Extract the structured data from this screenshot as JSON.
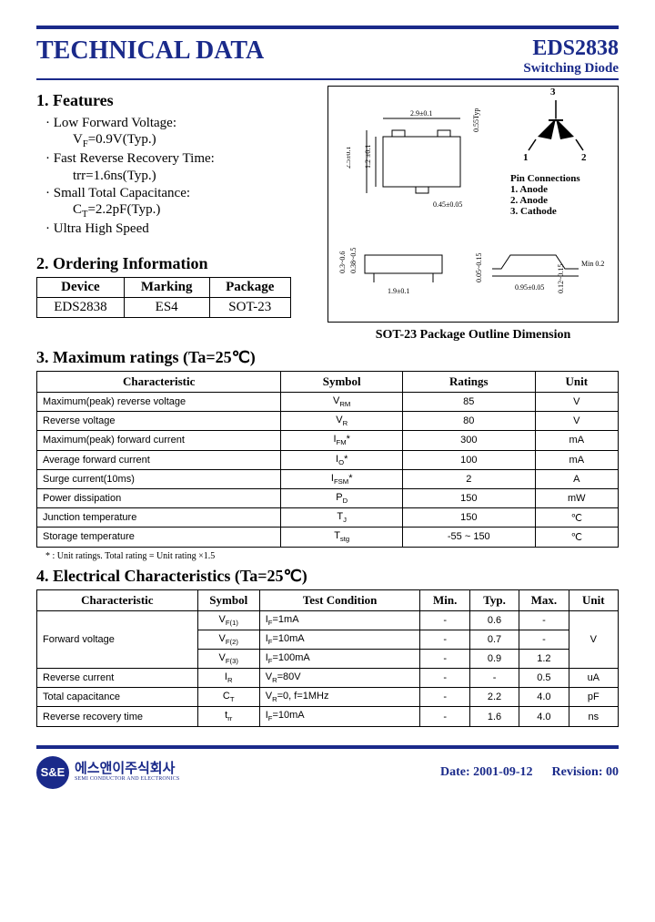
{
  "header": {
    "title": "TECHNICAL DATA",
    "part_number": "EDS2838",
    "part_type": "Switching Diode",
    "accent_color": "#1a2a8a"
  },
  "features": {
    "heading": "1. Features",
    "items": [
      {
        "main": "· Low Forward Voltage:",
        "sub": "VF=0.9V(Typ.)"
      },
      {
        "main": "· Fast Reverse Recovery Time:",
        "sub": "trr=1.6ns(Typ.)"
      },
      {
        "main": "· Small Total Capacitance:",
        "sub": "CT=2.2pF(Typ.)"
      },
      {
        "main": "· Ultra High Speed",
        "sub": ""
      }
    ]
  },
  "ordering": {
    "heading": "2. Ordering Information",
    "columns": [
      "Device",
      "Marking",
      "Package"
    ],
    "rows": [
      [
        "EDS2838",
        "ES4",
        "SOT-23"
      ]
    ]
  },
  "package_diagram": {
    "caption": "SOT-23 Package Outline Dimension",
    "pin_heading": "Pin Connections",
    "pins": [
      "1. Anode",
      "2. Anode",
      "3. Cathode"
    ],
    "pin_top": "3",
    "pin_bl": "1",
    "pin_br": "2",
    "dims": [
      "2.9±0.1",
      "0.55Typ",
      "1.2 ±0.1",
      "2.5±0.1",
      "0.45±0.05",
      "1.9±0.1",
      "0.95±0.05",
      "0.3~0.6",
      "0.38~0.5",
      "0.05~0.15",
      "0.12~0.15",
      "Min 0.2"
    ]
  },
  "max_ratings": {
    "heading": "3. Maximum ratings (Ta=25℃)",
    "columns": [
      "Characteristic",
      "Symbol",
      "Ratings",
      "Unit"
    ],
    "rows": [
      [
        "Maximum(peak) reverse voltage",
        "VRM",
        "85",
        "V"
      ],
      [
        "Reverse voltage",
        "VR",
        "80",
        "V"
      ],
      [
        "Maximum(peak) forward current",
        "IFM*",
        "300",
        "mA"
      ],
      [
        "Average forward current",
        "IO*",
        "100",
        "mA"
      ],
      [
        "Surge current(10ms)",
        "IFSM*",
        "2",
        "A"
      ],
      [
        "Power dissipation",
        "PD",
        "150",
        "mW"
      ],
      [
        "Junction temperature",
        "TJ",
        "150",
        "℃"
      ],
      [
        "Storage temperature",
        "Tstg",
        "-55 ~ 150",
        "℃"
      ]
    ],
    "footnote": "* : Unit ratings. Total rating = Unit rating ×1.5"
  },
  "elec": {
    "heading": "4. Electrical Characteristics (Ta=25℃)",
    "columns": [
      "Characteristic",
      "Symbol",
      "Test Condition",
      "Min.",
      "Typ.",
      "Max.",
      "Unit"
    ],
    "rows": [
      {
        "char": "Forward voltage",
        "rowspan": 3,
        "sym": "VF(1)",
        "cond": "IF=1mA",
        "min": "-",
        "typ": "0.6",
        "max": "-",
        "unit": "V",
        "unitrowspan": 3
      },
      {
        "sym": "VF(2)",
        "cond": "IF=10mA",
        "min": "-",
        "typ": "0.7",
        "max": "-"
      },
      {
        "sym": "VF(3)",
        "cond": "IF=100mA",
        "min": "-",
        "typ": "0.9",
        "max": "1.2"
      },
      {
        "char": "Reverse current",
        "sym": "IR",
        "cond": "VR=80V",
        "min": "-",
        "typ": "-",
        "max": "0.5",
        "unit": "uA"
      },
      {
        "char": "Total capacitance",
        "sym": "CT",
        "cond": "VR=0, f=1MHz",
        "min": "-",
        "typ": "2.2",
        "max": "4.0",
        "unit": "pF"
      },
      {
        "char": "Reverse recovery time",
        "sym": "trr",
        "cond": "IF=10mA",
        "min": "-",
        "typ": "1.6",
        "max": "4.0",
        "unit": "ns"
      }
    ]
  },
  "footer": {
    "company_kr": "에스앤이주식회사",
    "company_sub": "SEMI CONDUCTOR AND ELECTRONICS",
    "logo_text": "S&E",
    "date_label": "Date: 2001-09-12",
    "rev_label": "Revision: 00"
  }
}
